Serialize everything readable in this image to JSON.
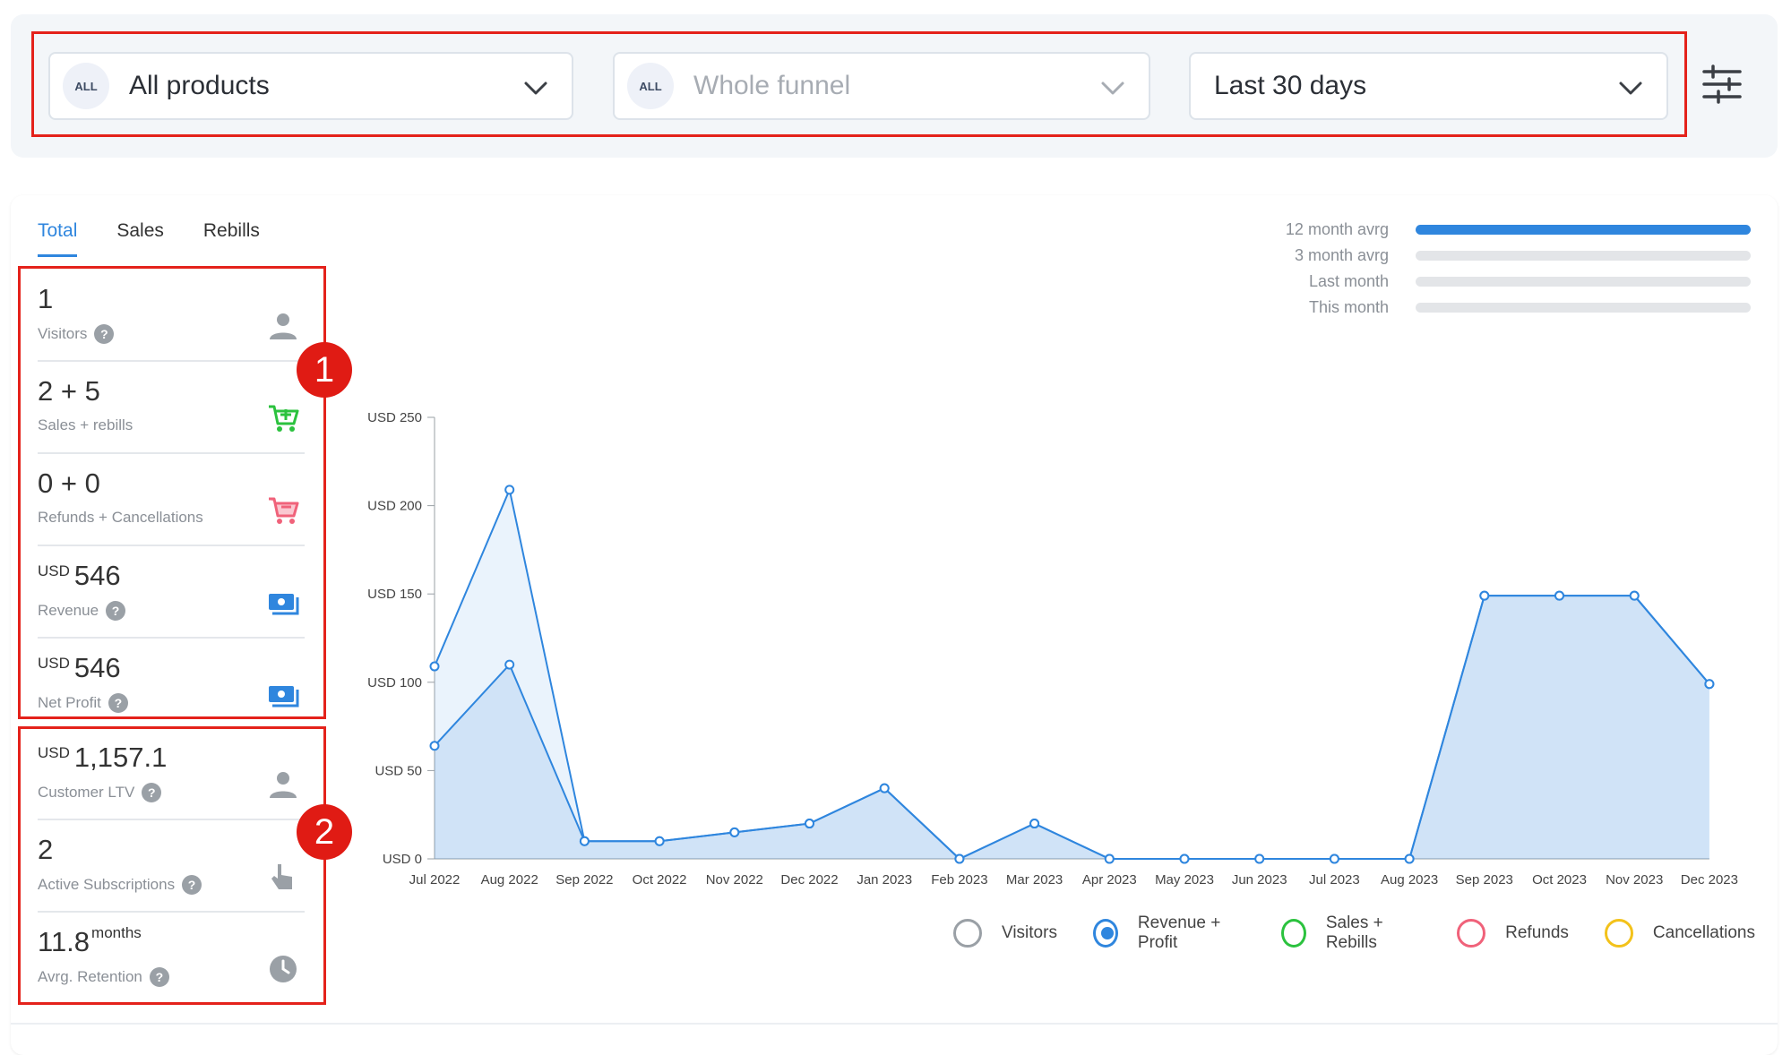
{
  "filters": {
    "product": {
      "badge": "ALL",
      "value": "All products"
    },
    "funnel": {
      "badge": "ALL",
      "value": "Whole funnel"
    },
    "period": {
      "value": "Last 30 days"
    }
  },
  "tabs": [
    {
      "label": "Total",
      "active": true
    },
    {
      "label": "Sales",
      "active": false
    },
    {
      "label": "Rebills",
      "active": false
    }
  ],
  "metrics": [
    {
      "value": "1",
      "currency": "",
      "suffix": "",
      "label": "Visitors",
      "help": true,
      "icon": "person-icon",
      "icon_color": "#9aa0a6"
    },
    {
      "value": "2 + 5",
      "currency": "",
      "suffix": "",
      "label": "Sales + rebills",
      "help": false,
      "icon": "cart-add-icon",
      "icon_color": "#2bc23e"
    },
    {
      "value": "0 + 0",
      "currency": "",
      "suffix": "",
      "label": "Refunds + Cancellations",
      "help": false,
      "icon": "cart-remove-icon",
      "icon_color": "#f0627a"
    },
    {
      "value": "546",
      "currency": "USD",
      "suffix": "",
      "label": "Revenue",
      "help": true,
      "icon": "money-icon",
      "icon_color": "#2f86de"
    },
    {
      "value": "546",
      "currency": "USD",
      "suffix": "",
      "label": "Net Profit",
      "help": true,
      "icon": "money-icon",
      "icon_color": "#2f86de"
    },
    {
      "value": "1,157.1",
      "currency": "USD",
      "suffix": "",
      "label": "Customer LTV",
      "help": true,
      "icon": "person-icon",
      "icon_color": "#9aa0a6"
    },
    {
      "value": "2",
      "currency": "",
      "suffix": "",
      "label": "Active Subscriptions",
      "help": true,
      "icon": "hand-pointer-icon",
      "icon_color": "#9aa0a6"
    },
    {
      "value": "11.8",
      "currency": "",
      "suffix": "months",
      "label": "Avrg. Retention",
      "help": true,
      "icon": "clock-icon",
      "icon_color": "#9aa0a6"
    }
  ],
  "badges": {
    "one": "1",
    "two": "2"
  },
  "averages": [
    {
      "label": "12 month avrg",
      "fill": 1.0
    },
    {
      "label": "3 month avrg",
      "fill": 0
    },
    {
      "label": "Last month",
      "fill": 0
    },
    {
      "label": "This month",
      "fill": 0
    }
  ],
  "legend": [
    {
      "label": "Visitors",
      "color": "#9aa0a6",
      "selected": false
    },
    {
      "label": "Revenue + Profit",
      "color": "#2f86de",
      "selected": true
    },
    {
      "label": "Sales + Rebills",
      "color": "#2bc23e",
      "selected": false
    },
    {
      "label": "Refunds",
      "color": "#f0627a",
      "selected": false
    },
    {
      "label": "Cancellations",
      "color": "#f3c21b",
      "selected": false
    }
  ],
  "chart_data": {
    "type": "area",
    "categories": [
      "Jul 2022",
      "Aug 2022",
      "Sep 2022",
      "Oct 2022",
      "Nov 2022",
      "Dec 2022",
      "Jan 2023",
      "Feb 2023",
      "Mar 2023",
      "Apr 2023",
      "May 2023",
      "Jun 2023",
      "Jul 2023",
      "Aug 2023",
      "Sep 2023",
      "Oct 2023",
      "Nov 2023",
      "Dec 2023"
    ],
    "series": [
      {
        "values": [
          109,
          209,
          10,
          10,
          15,
          20,
          40,
          0,
          20,
          0,
          0,
          0,
          0,
          0,
          149,
          149,
          149,
          99
        ]
      },
      {
        "values": [
          64,
          110,
          10,
          10,
          15,
          20,
          40,
          0,
          20,
          0,
          0,
          0,
          0,
          0,
          149,
          149,
          149,
          99
        ]
      }
    ],
    "yticks": [
      "USD 0",
      "USD 50",
      "USD 100",
      "USD 150",
      "USD 200",
      "USD 250"
    ],
    "ylim": [
      0,
      250
    ],
    "line_color": "#2f86de",
    "grid": false
  }
}
